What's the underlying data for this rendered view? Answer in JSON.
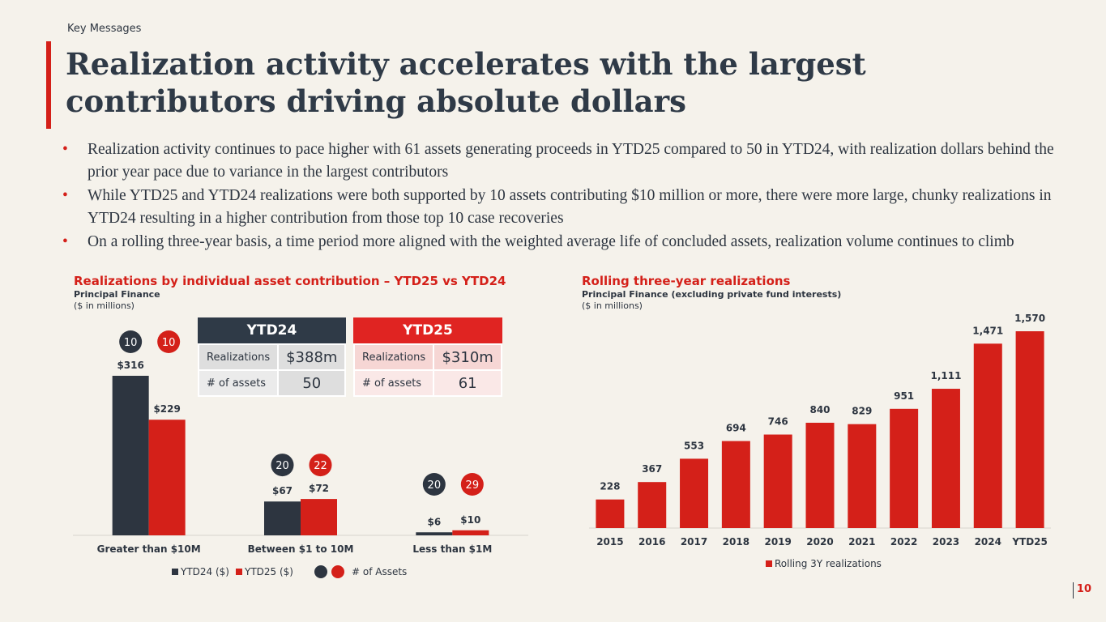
{
  "header": {
    "section": "Key Messages",
    "title": "Realization activity accelerates with the largest contributors driving absolute dollars"
  },
  "bullets": [
    "Realization activity continues to pace higher with 61 assets generating proceeds in YTD25 compared to 50 in YTD24, with realization dollars behind the prior year pace due to variance in the largest contributors",
    "While YTD25 and YTD24 realizations were both supported by 10 assets contributing $10 million or more, there were more large, chunky realizations in YTD24 resulting in a higher contribution from those top 10 case recoveries",
    "On a rolling three-year basis, a time period more aligned with the weighted average life of concluded assets, realization volume continues to climb"
  ],
  "left_chart": {
    "title": "Realizations by individual asset contribution – YTD25 vs YTD24",
    "subtitle": "Principal Finance",
    "unit": "($ in millions)"
  },
  "summary": {
    "ytd24": {
      "header": "YTD24",
      "realizations_label": "Realizations",
      "realizations_value": "$388m",
      "assets_label": "# of assets",
      "assets_value": "50"
    },
    "ytd25": {
      "header": "YTD25",
      "realizations_label": "Realizations",
      "realizations_value": "$310m",
      "assets_label": "# of assets",
      "assets_value": "61"
    }
  },
  "right_chart": {
    "title": "Rolling three-year realizations",
    "subtitle": "Principal Finance (excluding private fund interests)",
    "unit": "($ in millions)"
  },
  "colors": {
    "navy": "#2d3540",
    "red": "#d42019",
    "red_box": "#e02422",
    "pink_cell": "#f6d6d4",
    "pink_cell2": "#fae8e7",
    "grey_cell": "#dedede",
    "grey_cell2": "#ebebeb"
  },
  "chart_data": [
    {
      "type": "bar",
      "categories": [
        "Greater than $10M",
        "Between $1 to 10M",
        "Less than $1M"
      ],
      "series": [
        {
          "name": "YTD24 ($)",
          "values": [
            316,
            67,
            6
          ],
          "labels": [
            "$316",
            "$67",
            "$6"
          ],
          "assets": [
            "10",
            "20",
            "20"
          ]
        },
        {
          "name": "YTD25 ($)",
          "values": [
            229,
            72,
            10
          ],
          "labels": [
            "$229",
            "$72",
            "$10"
          ],
          "assets": [
            "10",
            "22",
            "29"
          ]
        }
      ],
      "legend_assets_label": "# of Assets",
      "ylim": [
        0,
        316
      ]
    },
    {
      "type": "bar",
      "categories": [
        "2015",
        "2016",
        "2017",
        "2018",
        "2019",
        "2020",
        "2021",
        "2022",
        "2023",
        "2024",
        "YTD25"
      ],
      "series": [
        {
          "name": "Rolling 3Y realizations",
          "values": [
            228,
            367,
            553,
            694,
            746,
            840,
            829,
            951,
            1111,
            1471,
            1570
          ],
          "labels": [
            "228",
            "367",
            "553",
            "694",
            "746",
            "840",
            "829",
            "951",
            "1,111",
            "1,471",
            "1,570"
          ]
        }
      ],
      "ylim": [
        0,
        1570
      ]
    }
  ],
  "page_number": "10"
}
